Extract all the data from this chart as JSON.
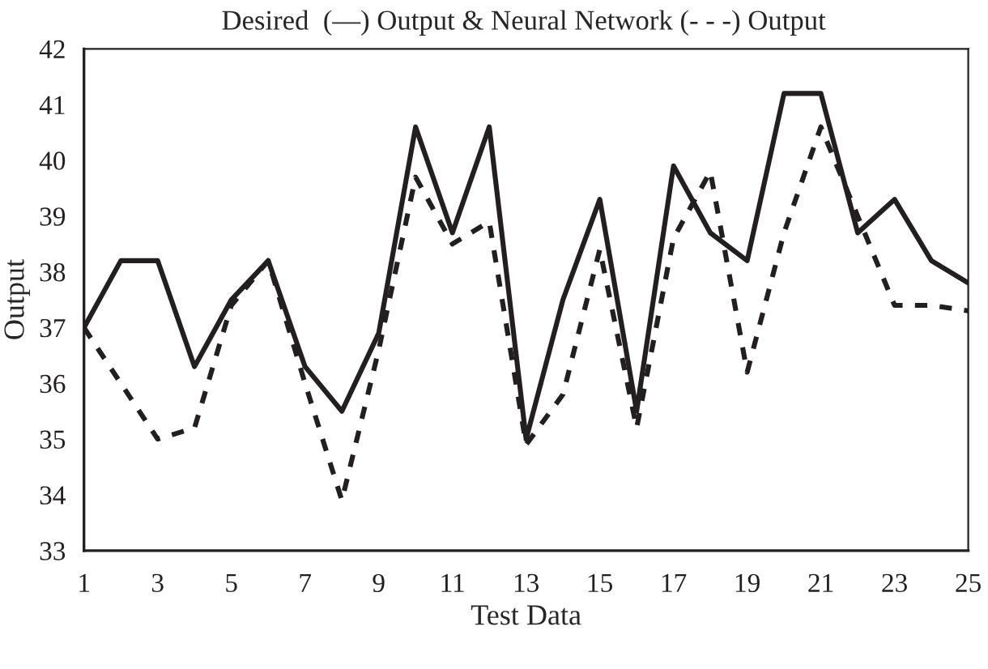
{
  "chart_data": {
    "type": "line",
    "title": "Desired  (—) Output & Neural Network (- - -) Output",
    "xlabel": "Test Data",
    "ylabel": "Output",
    "x": [
      1,
      2,
      3,
      4,
      5,
      6,
      7,
      8,
      9,
      10,
      11,
      12,
      13,
      14,
      15,
      16,
      17,
      18,
      19,
      20,
      21,
      22,
      23,
      24,
      25
    ],
    "series": [
      {
        "color": "#231f20",
        "line_style": "solid",
        "values": [
          37.0,
          38.2,
          38.2,
          36.3,
          37.5,
          38.2,
          36.3,
          35.5,
          36.9,
          40.6,
          38.7,
          40.6,
          35.0,
          37.5,
          39.3,
          35.5,
          39.9,
          38.7,
          38.2,
          41.2,
          41.2,
          38.7,
          39.3,
          38.2,
          37.8
        ]
      },
      {
        "color": "#231f20",
        "line_style": "dashed",
        "values": [
          37.0,
          36.0,
          35.0,
          35.2,
          37.4,
          38.2,
          36.0,
          33.9,
          36.6,
          39.7,
          38.5,
          38.9,
          34.9,
          35.8,
          38.4,
          35.2,
          38.6,
          39.8,
          36.2,
          38.7,
          40.6,
          39.0,
          37.4,
          37.4,
          37.3
        ]
      }
    ],
    "xlim": [
      1,
      25
    ],
    "xticks": [
      1,
      3,
      5,
      7,
      9,
      11,
      13,
      15,
      17,
      19,
      21,
      23,
      25
    ],
    "ylim": [
      33,
      42
    ],
    "yticks": [
      33,
      34,
      35,
      36,
      37,
      38,
      39,
      40,
      41,
      42
    ],
    "grid": false,
    "legend": false
  }
}
